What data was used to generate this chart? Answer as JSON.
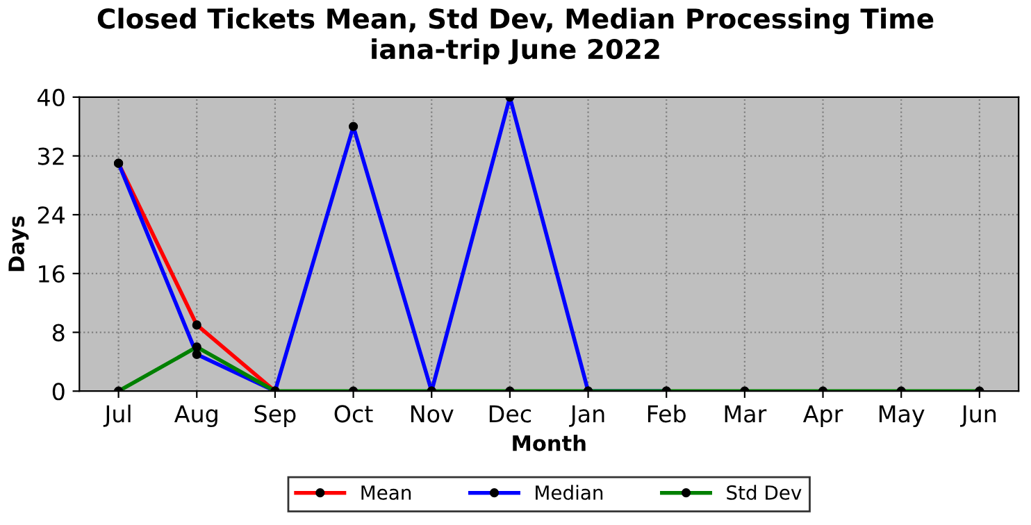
{
  "chart_data": {
    "type": "line",
    "title": "Closed Tickets Mean, Std Dev, Median Processing Time\niana-trip June 2022",
    "xlabel": "Month",
    "ylabel": "Days",
    "categories": [
      "Jul",
      "Aug",
      "Sep",
      "Oct",
      "Nov",
      "Dec",
      "Jan",
      "Feb",
      "Mar",
      "Apr",
      "May",
      "Jun"
    ],
    "series": [
      {
        "name": "Mean",
        "color": "#ff0000",
        "values": [
          31,
          9,
          0,
          null,
          null,
          null,
          null,
          null,
          null,
          null,
          null,
          null
        ]
      },
      {
        "name": "Median",
        "color": "#0000ff",
        "values": [
          31,
          5,
          0,
          36,
          0,
          40,
          0,
          0,
          null,
          null,
          null,
          null
        ]
      },
      {
        "name": "Std Dev",
        "color": "#008000",
        "values": [
          0,
          6,
          0,
          0,
          0,
          0,
          0,
          0,
          0,
          0,
          0,
          0
        ]
      }
    ],
    "ylim": [
      0,
      40
    ],
    "yticks": [
      0,
      8,
      16,
      24,
      32,
      40
    ],
    "grid": true,
    "legend": "bottom",
    "marker": "circle",
    "line_style": "solid"
  }
}
